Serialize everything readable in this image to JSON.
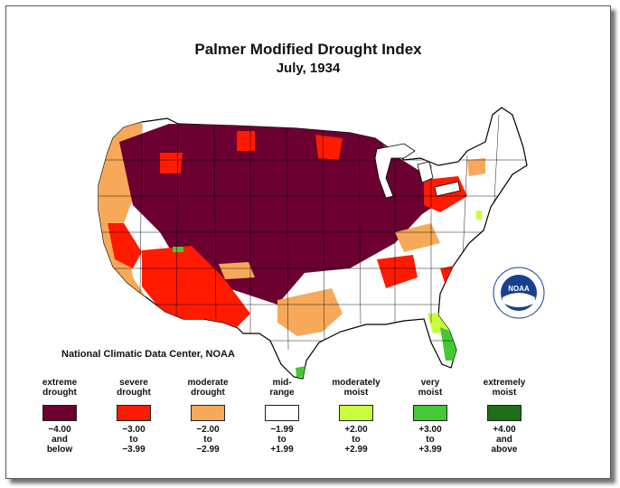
{
  "title": "Palmer Modified Drought Index",
  "subtitle": "July, 1934",
  "credit": "National Climatic Data Center, NOAA",
  "logo": {
    "text": "NOAA",
    "icon": "noaa-logo-icon"
  },
  "legend": [
    {
      "label1": "extreme",
      "label2": "drought",
      "color": "#6b0031",
      "r1": "−4.00",
      "r2": "and",
      "r3": "below"
    },
    {
      "label1": "severe",
      "label2": "drought",
      "color": "#ff1a00",
      "r1": "−3.00",
      "r2": "to",
      "r3": "−3.99"
    },
    {
      "label1": "moderate",
      "label2": "drought",
      "color": "#f7a959",
      "r1": "−2.00",
      "r2": "to",
      "r3": "−2.99"
    },
    {
      "label1": "mid-",
      "label2": "range",
      "color": "#ffffff",
      "r1": "−1.99",
      "r2": "to",
      "r3": "+1.99"
    },
    {
      "label1": "moderately",
      "label2": "moist",
      "color": "#c8ff3c",
      "r1": "+2.00",
      "r2": "to",
      "r3": "+2.99"
    },
    {
      "label1": "very",
      "label2": "moist",
      "color": "#44c833",
      "r1": "+3.00",
      "r2": "to",
      "r3": "+3.99"
    },
    {
      "label1": "extremely",
      "label2": "moist",
      "color": "#1f6e1a",
      "r1": "+4.00",
      "r2": "and",
      "r3": "above"
    }
  ]
}
